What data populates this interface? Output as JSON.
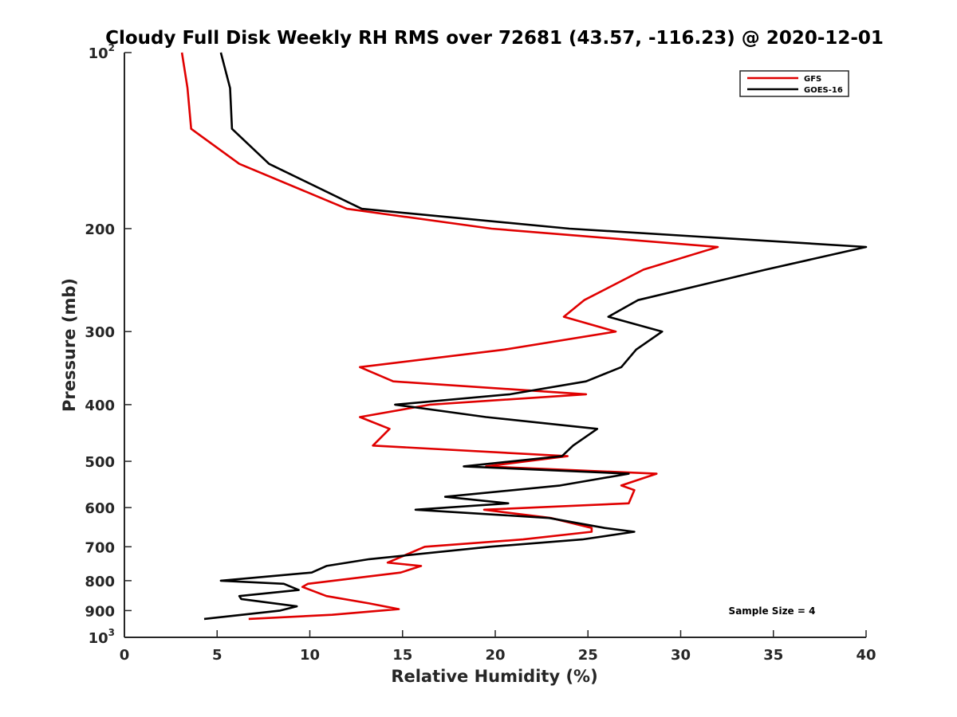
{
  "chart_data": {
    "type": "line",
    "title": "Cloudy Full Disk Weekly RH RMS over 72681 (43.57, -116.23) @ 2020-12-01",
    "xlabel": "Relative Humidity (%)",
    "ylabel": "Pressure (mb)",
    "xlim": [
      0,
      40
    ],
    "ylim": [
      100,
      1000
    ],
    "y_scale": "log",
    "y_reversed": true,
    "grid": false,
    "x_ticks": [
      "0",
      "5",
      "10",
      "15",
      "20",
      "25",
      "30",
      "35",
      "40"
    ],
    "y_ticks": [
      {
        "value": 100,
        "base": "10",
        "exp": "2"
      },
      {
        "value": 200,
        "base": "200",
        "exp": ""
      },
      {
        "value": 300,
        "base": "300",
        "exp": ""
      },
      {
        "value": 400,
        "base": "400",
        "exp": ""
      },
      {
        "value": 500,
        "base": "500",
        "exp": ""
      },
      {
        "value": 600,
        "base": "600",
        "exp": ""
      },
      {
        "value": 700,
        "base": "700",
        "exp": ""
      },
      {
        "value": 800,
        "base": "800",
        "exp": ""
      },
      {
        "value": 900,
        "base": "900",
        "exp": ""
      },
      {
        "value": 1000,
        "base": "10",
        "exp": "3"
      }
    ],
    "legend_position": "top-right",
    "annotation": "Sample Size = 4",
    "series": [
      {
        "name": "GFS",
        "color": "#e00000",
        "points": [
          [
            3.1,
            100
          ],
          [
            3.4,
            115
          ],
          [
            3.6,
            135
          ],
          [
            6.2,
            155
          ],
          [
            12.0,
            185
          ],
          [
            19.8,
            200
          ],
          [
            32.0,
            215
          ],
          [
            28.0,
            235
          ],
          [
            24.8,
            265
          ],
          [
            23.7,
            283
          ],
          [
            26.5,
            300
          ],
          [
            20.5,
            322
          ],
          [
            12.7,
            345
          ],
          [
            14.5,
            365
          ],
          [
            24.9,
            384
          ],
          [
            16.5,
            400
          ],
          [
            12.7,
            420
          ],
          [
            14.3,
            440
          ],
          [
            13.4,
            470
          ],
          [
            23.9,
            490
          ],
          [
            19.5,
            510
          ],
          [
            28.7,
            525
          ],
          [
            26.8,
            550
          ],
          [
            27.5,
            560
          ],
          [
            27.2,
            590
          ],
          [
            19.4,
            605
          ],
          [
            23.0,
            625
          ],
          [
            25.2,
            650
          ],
          [
            25.2,
            660
          ],
          [
            21.5,
            680
          ],
          [
            16.2,
            700
          ],
          [
            14.2,
            745
          ],
          [
            16.0,
            755
          ],
          [
            14.9,
            775
          ],
          [
            9.9,
            810
          ],
          [
            9.6,
            820
          ],
          [
            10.9,
            850
          ],
          [
            13.2,
            875
          ],
          [
            14.8,
            895
          ],
          [
            11.2,
            915
          ],
          [
            6.7,
            930
          ]
        ]
      },
      {
        "name": "GOES-16",
        "color": "#000000",
        "points": [
          [
            5.2,
            100
          ],
          [
            5.7,
            115
          ],
          [
            5.8,
            135
          ],
          [
            7.8,
            155
          ],
          [
            12.8,
            185
          ],
          [
            24.0,
            200
          ],
          [
            40.0,
            215
          ],
          [
            34.6,
            235
          ],
          [
            27.7,
            265
          ],
          [
            26.1,
            283
          ],
          [
            29.0,
            300
          ],
          [
            27.6,
            322
          ],
          [
            26.8,
            345
          ],
          [
            24.9,
            365
          ],
          [
            20.8,
            384
          ],
          [
            14.6,
            400
          ],
          [
            19.5,
            420
          ],
          [
            25.5,
            440
          ],
          [
            24.2,
            470
          ],
          [
            23.6,
            490
          ],
          [
            18.3,
            510
          ],
          [
            27.2,
            525
          ],
          [
            23.5,
            550
          ],
          [
            17.3,
            575
          ],
          [
            20.7,
            590
          ],
          [
            15.7,
            605
          ],
          [
            22.9,
            625
          ],
          [
            25.9,
            650
          ],
          [
            27.5,
            660
          ],
          [
            24.7,
            680
          ],
          [
            19.7,
            700
          ],
          [
            13.2,
            735
          ],
          [
            10.9,
            755
          ],
          [
            10.1,
            775
          ],
          [
            5.2,
            800
          ],
          [
            8.6,
            810
          ],
          [
            9.4,
            830
          ],
          [
            6.2,
            850
          ],
          [
            6.3,
            860
          ],
          [
            9.3,
            885
          ],
          [
            8.4,
            900
          ],
          [
            4.3,
            930
          ]
        ]
      }
    ]
  }
}
